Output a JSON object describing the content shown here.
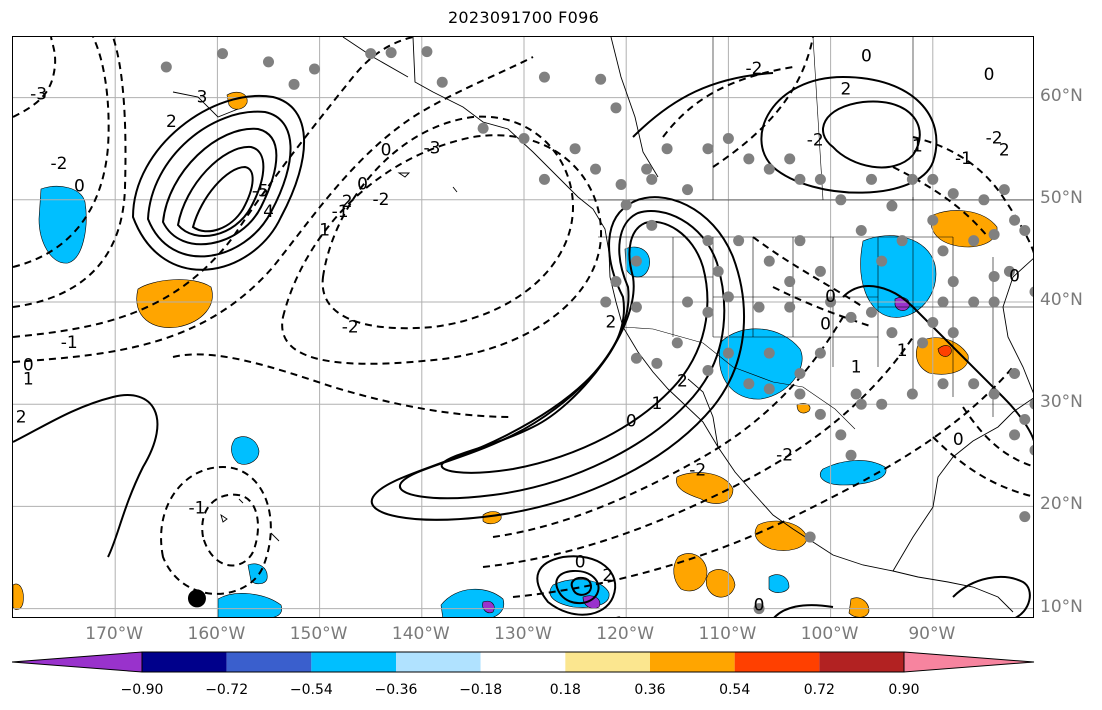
{
  "header": {
    "title": "2023091700 F096"
  },
  "axes": {
    "lat_labels": [
      "60°N",
      "50°N",
      "40°N",
      "30°N",
      "20°N",
      "10°N"
    ],
    "lat_values": [
      60,
      50,
      40,
      30,
      20,
      10
    ],
    "lon_labels": [
      "170°W",
      "160°W",
      "150°W",
      "140°W",
      "130°W",
      "120°W",
      "110°W",
      "100°W",
      "90°W"
    ],
    "lon_values": [
      -170,
      -160,
      -150,
      -140,
      -130,
      -120,
      -110,
      -100,
      -90
    ],
    "lon_range": [
      -180,
      -80
    ],
    "lat_range": [
      8,
      65
    ],
    "label_color": "#7a7a7a",
    "grid": true
  },
  "colorbar": {
    "ticks": [
      "−0.90",
      "−0.72",
      "−0.54",
      "−0.36",
      "−0.18",
      "0.18",
      "0.36",
      "0.54",
      "0.72",
      "0.90"
    ],
    "colors": [
      "#9932cc",
      "#00008b",
      "#3a5fcd",
      "#00bfff",
      "#b0e2ff",
      "#ffffff",
      "#fbe68f",
      "#ffa500",
      "#ff4000",
      "#b22222",
      "#f7849f"
    ],
    "extend": "both"
  },
  "contour_labels": [
    {
      "text": "-3",
      "lon": -177.5,
      "lat": 60.3
    },
    {
      "text": "-2",
      "lon": -175.5,
      "lat": 53.5
    },
    {
      "text": "0",
      "lon": -173.5,
      "lat": 51.3
    },
    {
      "text": "-1",
      "lon": -174.5,
      "lat": 36.0
    },
    {
      "text": "0",
      "lon": -178.5,
      "lat": 33.8
    },
    {
      "text": "1",
      "lon": -178.5,
      "lat": 32.4
    },
    {
      "text": "2",
      "lon": -179.2,
      "lat": 28.7
    },
    {
      "text": "2",
      "lon": -164.5,
      "lat": 57.6
    },
    {
      "text": "3",
      "lon": -161.5,
      "lat": 60.0
    },
    {
      "text": "-5",
      "lon": -155.8,
      "lat": 50.8
    },
    {
      "text": "4",
      "lon": -155.0,
      "lat": 48.8
    },
    {
      "text": "-1",
      "lon": -148.0,
      "lat": 48.8
    },
    {
      "text": "2",
      "lon": -147.3,
      "lat": 49.8
    },
    {
      "text": "0",
      "lon": -145.8,
      "lat": 51.5
    },
    {
      "text": "1",
      "lon": -149.5,
      "lat": 47.0
    },
    {
      "text": "0",
      "lon": -143.5,
      "lat": 54.8
    },
    {
      "text": "-2",
      "lon": -144.0,
      "lat": 50.0
    },
    {
      "text": "-3",
      "lon": -139.0,
      "lat": 55.0
    },
    {
      "text": "-2",
      "lon": -147.0,
      "lat": 37.5
    },
    {
      "text": "-1",
      "lon": -162.0,
      "lat": 19.8
    },
    {
      "text": "2",
      "lon": -121.5,
      "lat": 38.0
    },
    {
      "text": "2",
      "lon": -114.5,
      "lat": 32.2
    },
    {
      "text": "1",
      "lon": -117.0,
      "lat": 30.0
    },
    {
      "text": "0",
      "lon": -119.5,
      "lat": 28.3
    },
    {
      "text": "-2",
      "lon": -113.0,
      "lat": 23.5
    },
    {
      "text": "-2",
      "lon": -104.5,
      "lat": 25.0
    },
    {
      "text": "0",
      "lon": -124.5,
      "lat": 14.5
    },
    {
      "text": "2",
      "lon": -121.8,
      "lat": 13.2
    },
    {
      "text": "-1",
      "lon": -121.0,
      "lat": 8.5
    },
    {
      "text": "0",
      "lon": -107.0,
      "lat": 10.3
    },
    {
      "text": "-2",
      "lon": -107.5,
      "lat": 62.8
    },
    {
      "text": "0",
      "lon": -96.5,
      "lat": 64.0
    },
    {
      "text": "-2",
      "lon": -101.5,
      "lat": 55.8
    },
    {
      "text": "2",
      "lon": -98.5,
      "lat": 60.8
    },
    {
      "text": "1",
      "lon": -91.5,
      "lat": 55.2
    },
    {
      "text": "-1",
      "lon": -87.0,
      "lat": 54.0
    },
    {
      "text": "-2",
      "lon": -84.0,
      "lat": 56.0
    },
    {
      "text": "0",
      "lon": -84.5,
      "lat": 62.2
    },
    {
      "text": "2",
      "lon": -83.0,
      "lat": 54.8
    },
    {
      "text": "0",
      "lon": -100.0,
      "lat": 40.5
    },
    {
      "text": "0",
      "lon": -100.5,
      "lat": 37.8
    },
    {
      "text": "1",
      "lon": -97.5,
      "lat": 33.6
    },
    {
      "text": "1",
      "lon": -93.0,
      "lat": 35.2
    },
    {
      "text": "0",
      "lon": -87.5,
      "lat": 26.5
    },
    {
      "text": "0",
      "lon": -82.0,
      "lat": 42.5
    }
  ],
  "station_dots": [
    [
      -159.5,
      64.3
    ],
    [
      -165,
      63
    ],
    [
      -155,
      63.5
    ],
    [
      -152.5,
      61.3
    ],
    [
      -150.5,
      62.8
    ],
    [
      -145,
      64.3
    ],
    [
      -143,
      64.4
    ],
    [
      -139.5,
      64.5
    ],
    [
      -138,
      61.5
    ],
    [
      -128,
      62
    ],
    [
      -122.5,
      61.8
    ],
    [
      -121,
      59
    ],
    [
      -134,
      57
    ],
    [
      -130,
      56
    ],
    [
      -125,
      55
    ],
    [
      -123,
      53
    ],
    [
      -128,
      52
    ],
    [
      -120.5,
      51.5
    ],
    [
      -118,
      53
    ],
    [
      -116,
      55
    ],
    [
      -112,
      55
    ],
    [
      -117.5,
      52
    ],
    [
      -114,
      51
    ],
    [
      -110,
      56
    ],
    [
      -108,
      54
    ],
    [
      -104,
      54
    ],
    [
      -106,
      53
    ],
    [
      -103,
      52
    ],
    [
      -101,
      52
    ],
    [
      -96,
      52
    ],
    [
      -92,
      52
    ],
    [
      -90,
      52
    ],
    [
      -88,
      50.6
    ],
    [
      -85,
      50
    ],
    [
      -82,
      48
    ],
    [
      -83,
      51
    ],
    [
      -99,
      50
    ],
    [
      -97,
      47
    ],
    [
      -94,
      49.4
    ],
    [
      -90,
      48
    ],
    [
      -86,
      46
    ],
    [
      -84,
      46.6
    ],
    [
      -81,
      47
    ],
    [
      -78,
      49
    ],
    [
      -93,
      46
    ],
    [
      -95,
      44
    ],
    [
      -89,
      45
    ],
    [
      -84,
      42.5
    ],
    [
      -82.5,
      43
    ],
    [
      -88,
      42
    ],
    [
      -86,
      40
    ],
    [
      -84,
      40
    ],
    [
      -80,
      41
    ],
    [
      -78,
      40
    ],
    [
      -89,
      40
    ],
    [
      -90,
      38
    ],
    [
      -88,
      37
    ],
    [
      -91,
      36
    ],
    [
      -94,
      37
    ],
    [
      -96,
      39
    ],
    [
      -98,
      38.5
    ],
    [
      -100,
      40
    ],
    [
      -101,
      43
    ],
    [
      -104,
      42
    ],
    [
      -106,
      44
    ],
    [
      -103,
      46
    ],
    [
      -109,
      46
    ],
    [
      -112,
      46
    ],
    [
      -111,
      43
    ],
    [
      -117.5,
      47.5
    ],
    [
      -120,
      49.5
    ],
    [
      -119,
      44
    ],
    [
      -121,
      42
    ],
    [
      -122,
      40
    ],
    [
      -119,
      39.5
    ],
    [
      -114,
      40
    ],
    [
      -112,
      39
    ],
    [
      -110,
      40.5
    ],
    [
      -107,
      39.5
    ],
    [
      -104,
      39.5
    ],
    [
      -101,
      35
    ],
    [
      -103,
      33
    ],
    [
      -106,
      35
    ],
    [
      -110,
      35
    ],
    [
      -115,
      36
    ],
    [
      -117,
      34
    ],
    [
      -119,
      34.5
    ],
    [
      -112,
      33.3
    ],
    [
      -108,
      32
    ],
    [
      -106,
      31.5
    ],
    [
      -103,
      31
    ],
    [
      -101,
      29
    ],
    [
      -99,
      27
    ],
    [
      -98,
      25
    ],
    [
      -97,
      30
    ],
    [
      -95,
      30
    ],
    [
      -92,
      31
    ],
    [
      -89,
      32
    ],
    [
      -86,
      32
    ],
    [
      -84,
      31
    ],
    [
      -82,
      33
    ],
    [
      -79,
      33.5
    ],
    [
      -80,
      30
    ],
    [
      -81,
      28.5
    ],
    [
      -82,
      27
    ],
    [
      -80,
      25.5
    ],
    [
      -81,
      19
    ],
    [
      -102,
      17
    ],
    [
      -107,
      10
    ],
    [
      -97.5,
      31
    ]
  ],
  "black_marker": {
    "lon": -162,
    "lat": 11
  }
}
